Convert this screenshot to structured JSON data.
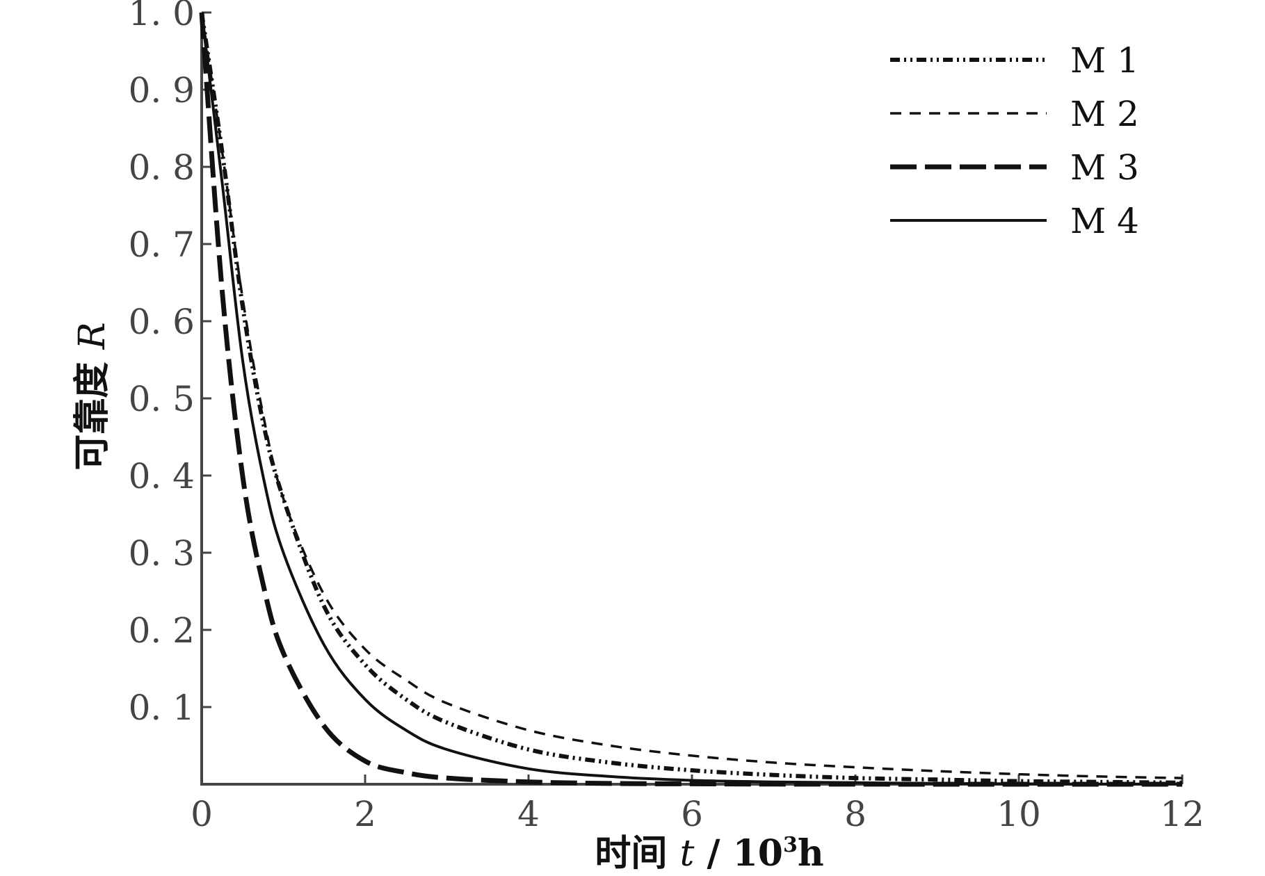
{
  "chart_data": {
    "type": "line",
    "x_axis": {
      "label_prefix": "时间 ",
      "label_var": "t",
      "label_sep": " / ",
      "label_base": "10",
      "label_sup": "3",
      "label_unit": "h",
      "range": [
        0,
        12
      ],
      "ticks": [
        0,
        2,
        4,
        6,
        8,
        10,
        12
      ],
      "tick_labels": [
        "0",
        "2",
        "4",
        "6",
        "8",
        "10",
        "12"
      ]
    },
    "y_axis": {
      "label_prefix": "可靠度 ",
      "label_var": "R",
      "range": [
        0,
        1.0
      ],
      "ticks": [
        0.1,
        0.2,
        0.3,
        0.4,
        0.5,
        0.6,
        0.7,
        0.8,
        0.9,
        1.0
      ],
      "tick_labels": [
        "0. 1",
        "0. 2",
        "0. 3",
        "0. 4",
        "0. 5",
        "0. 6",
        "0. 7",
        "0. 8",
        "0. 9",
        "1. 0"
      ]
    },
    "grid": false,
    "legend_position": "top-right",
    "x": [
      0,
      0.25,
      0.5,
      0.75,
      1,
      1.5,
      2,
      2.5,
      3,
      4,
      5,
      6,
      7,
      8,
      9,
      10,
      11,
      12
    ],
    "series": [
      {
        "name": "M 1",
        "style": "dash-dot-dot",
        "values": [
          1.0,
          0.82,
          0.62,
          0.47,
          0.37,
          0.23,
          0.155,
          0.11,
          0.08,
          0.045,
          0.028,
          0.018,
          0.012,
          0.008,
          0.006,
          0.004,
          0.003,
          0.002
        ]
      },
      {
        "name": "M 2",
        "style": "dashed",
        "values": [
          1.0,
          0.82,
          0.63,
          0.48,
          0.37,
          0.245,
          0.175,
          0.135,
          0.105,
          0.07,
          0.05,
          0.037,
          0.028,
          0.022,
          0.017,
          0.013,
          0.01,
          0.008
        ]
      },
      {
        "name": "M 3",
        "style": "long-dash",
        "values": [
          1.0,
          0.64,
          0.4,
          0.26,
          0.17,
          0.075,
          0.03,
          0.015,
          0.008,
          0.003,
          0.001,
          0.0005,
          0.0002,
          0.0001,
          0,
          0,
          0,
          0
        ]
      },
      {
        "name": "M 4",
        "style": "solid",
        "values": [
          1.0,
          0.78,
          0.55,
          0.4,
          0.3,
          0.18,
          0.11,
          0.07,
          0.045,
          0.02,
          0.01,
          0.005,
          0.003,
          0.002,
          0.001,
          0.0005,
          0.0003,
          0.0002
        ]
      }
    ]
  }
}
